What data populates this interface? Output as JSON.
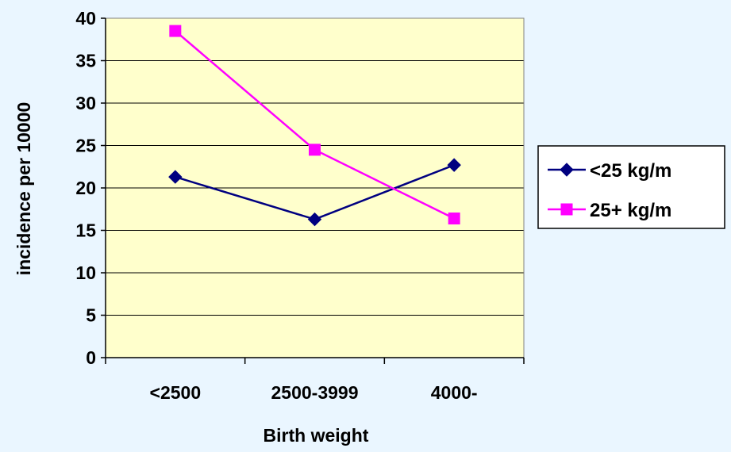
{
  "chart_data": {
    "type": "line",
    "categories": [
      "<2500",
      "2500-3999",
      "4000-"
    ],
    "series": [
      {
        "name": "<25 kg/m",
        "values": [
          21.3,
          16.3,
          22.7
        ],
        "color": "#000080",
        "marker": "diamond"
      },
      {
        "name": "25+ kg/m",
        "values": [
          38.5,
          24.5,
          16.4
        ],
        "color": "#FF00FF",
        "marker": "square"
      }
    ],
    "title": "",
    "xlabel": "Birth weight",
    "ylabel": "incidence per 10000",
    "ylim": [
      0,
      40
    ],
    "yticks": [
      0,
      5,
      10,
      15,
      20,
      25,
      30,
      35,
      40
    ],
    "grid": true,
    "legend_position": "right",
    "plot_background": "#FFFFCC",
    "page_background": "#EAF6FF"
  }
}
